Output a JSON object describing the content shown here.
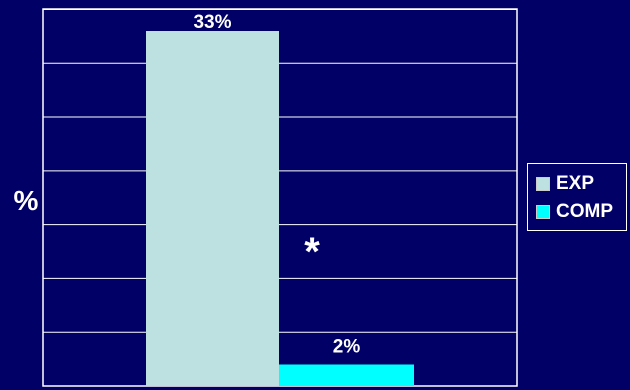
{
  "chart_data": {
    "type": "bar",
    "title": "",
    "xlabel": "",
    "ylabel": "%",
    "ylim": [
      0,
      35
    ],
    "grid": true,
    "legend_position": "right",
    "categories": [
      ""
    ],
    "series": [
      {
        "name": "EXP",
        "values": [
          33
        ],
        "labels": [
          "33%"
        ],
        "color": "#bde0e0"
      },
      {
        "name": "COMP",
        "values": [
          2
        ],
        "labels": [
          "2%"
        ],
        "color": "#00ffff"
      }
    ],
    "annotations": [
      {
        "text": "*"
      }
    ],
    "background_color": "#000066",
    "text_color": "#ffffff"
  }
}
